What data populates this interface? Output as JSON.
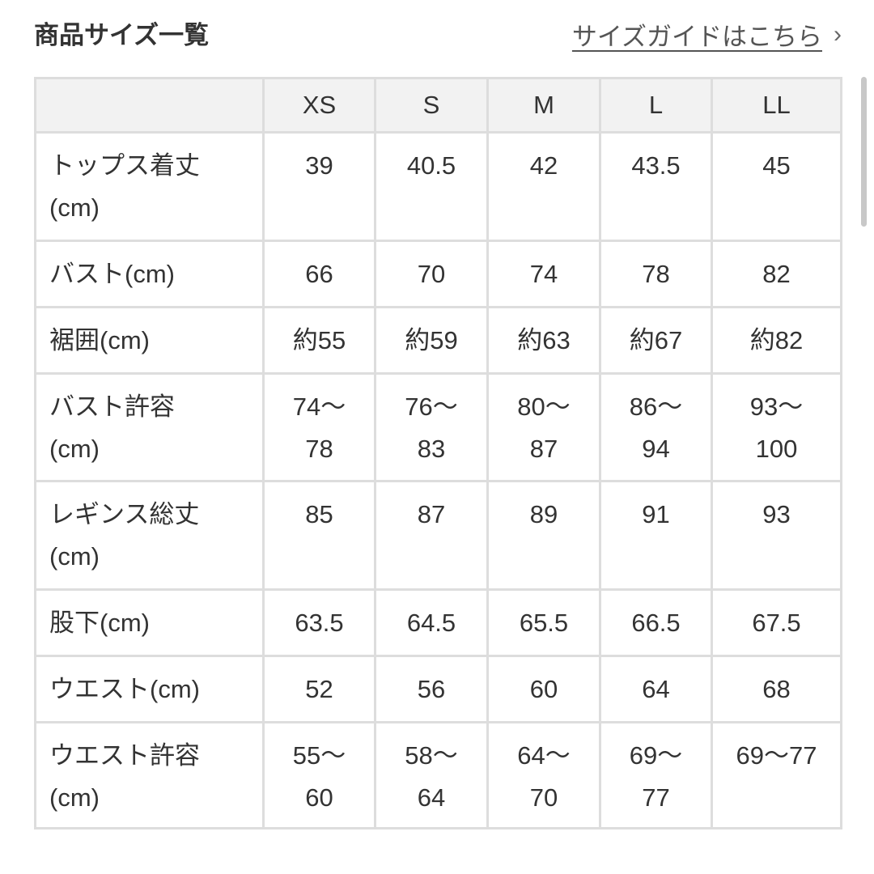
{
  "header": {
    "title": "商品サイズ一覧",
    "guide_link": "サイズガイドはこちら",
    "chevron_icon": "chevron-right-icon"
  },
  "table": {
    "columns": [
      "",
      "XS",
      "S",
      "M",
      "L",
      "LL"
    ],
    "rows": [
      {
        "label": "トップス着丈\n(cm)",
        "values": [
          "39",
          "40.5",
          "42",
          "43.5",
          "45"
        ]
      },
      {
        "label": "バスト(cm)",
        "values": [
          "66",
          "70",
          "74",
          "78",
          "82"
        ]
      },
      {
        "label": "裾囲(cm)",
        "values": [
          "約55",
          "約59",
          "約63",
          "約67",
          "約82"
        ]
      },
      {
        "label": "バスト許容\n(cm)",
        "values": [
          "74〜\n78",
          "76〜\n83",
          "80〜\n87",
          "86〜\n94",
          "93〜\n100"
        ]
      },
      {
        "label": "レギンス総丈\n(cm)",
        "values": [
          "85",
          "87",
          "89",
          "91",
          "93"
        ]
      },
      {
        "label": "股下(cm)",
        "values": [
          "63.5",
          "64.5",
          "65.5",
          "66.5",
          "67.5"
        ]
      },
      {
        "label": "ウエスト(cm)",
        "values": [
          "52",
          "56",
          "60",
          "64",
          "68"
        ]
      },
      {
        "label": "ウエスト許容\n(cm)",
        "values": [
          "55〜\n60",
          "58〜\n64",
          "64〜\n70",
          "69〜\n77",
          "69〜77"
        ]
      }
    ]
  },
  "colors": {
    "border": "#dddddd",
    "header_bg": "#f2f2f2",
    "text": "#333333"
  }
}
